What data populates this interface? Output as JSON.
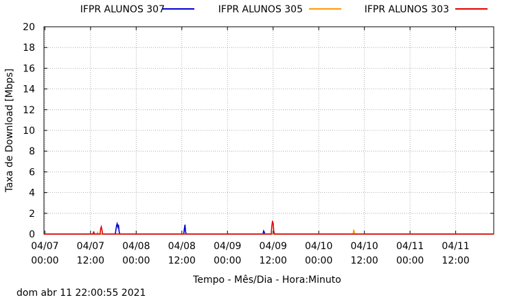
{
  "chart_data": {
    "type": "line",
    "xlabel": "Tempo - Mês/Dia - Hora:Minuto",
    "ylabel": "Taxa de Download [Mbps]",
    "ylim": [
      0,
      20
    ],
    "yticks": [
      0,
      2,
      4,
      6,
      8,
      10,
      12,
      14,
      16,
      18,
      20
    ],
    "xlim": [
      "04/06 23:45",
      "04/11 22:00"
    ],
    "xticks": [
      {
        "date": "04/07",
        "time": "00:00"
      },
      {
        "date": "04/07",
        "time": "12:00"
      },
      {
        "date": "04/08",
        "time": "00:00"
      },
      {
        "date": "04/08",
        "time": "12:00"
      },
      {
        "date": "04/09",
        "time": "00:00"
      },
      {
        "date": "04/09",
        "time": "12:00"
      },
      {
        "date": "04/10",
        "time": "00:00"
      },
      {
        "date": "04/10",
        "time": "12:00"
      },
      {
        "date": "04/11",
        "time": "00:00"
      },
      {
        "date": "04/11",
        "time": "12:00"
      }
    ],
    "grid": true,
    "legend_position": "top",
    "series": [
      {
        "name": "IFPR ALUNOS 307",
        "color": "#0000cc",
        "points": [
          [
            "04/07 18:30",
            0
          ],
          [
            "04/07 18:40",
            0.4
          ],
          [
            "04/07 18:50",
            0.8
          ],
          [
            "04/07 19:00",
            1.0
          ],
          [
            "04/07 19:10",
            0.7
          ],
          [
            "04/07 19:20",
            0.9
          ],
          [
            "04/07 19:30",
            0.3
          ],
          [
            "04/07 19:40",
            0
          ],
          [
            "04/08 12:30",
            0
          ],
          [
            "04/08 12:40",
            0.5
          ],
          [
            "04/08 12:50",
            0.9
          ],
          [
            "04/08 13:00",
            0.2
          ],
          [
            "04/08 13:10",
            0
          ],
          [
            "04/09 09:20",
            0
          ],
          [
            "04/09 09:30",
            0.3
          ],
          [
            "04/09 09:40",
            0.2
          ],
          [
            "04/09 09:50",
            0
          ]
        ]
      },
      {
        "name": "IFPR ALUNOS 305",
        "color": "#ff9900",
        "points": [
          [
            "04/07 13:40",
            0
          ],
          [
            "04/07 13:50",
            0.15
          ],
          [
            "04/07 14:00",
            0
          ],
          [
            "04/10 09:00",
            0
          ],
          [
            "04/10 09:10",
            0.35
          ],
          [
            "04/10 09:20",
            0.25
          ],
          [
            "04/10 09:30",
            0
          ]
        ]
      },
      {
        "name": "IFPR ALUNOS 303",
        "color": "#e00000",
        "points": [
          [
            "04/07 12:40",
            0
          ],
          [
            "04/07 12:50",
            0.25
          ],
          [
            "04/07 13:00",
            0
          ],
          [
            "04/07 14:30",
            0
          ],
          [
            "04/07 14:40",
            0.5
          ],
          [
            "04/07 14:50",
            0.7
          ],
          [
            "04/07 15:00",
            0.4
          ],
          [
            "04/07 15:10",
            0
          ],
          [
            "04/09 11:30",
            0
          ],
          [
            "04/09 11:40",
            0.8
          ],
          [
            "04/09 11:50",
            1.2
          ],
          [
            "04/09 12:00",
            1.1
          ],
          [
            "04/09 12:10",
            0.3
          ],
          [
            "04/09 12:20",
            0
          ]
        ]
      }
    ]
  },
  "footer": {
    "timestamp": "dom abr 11 22:00:55 2021"
  }
}
